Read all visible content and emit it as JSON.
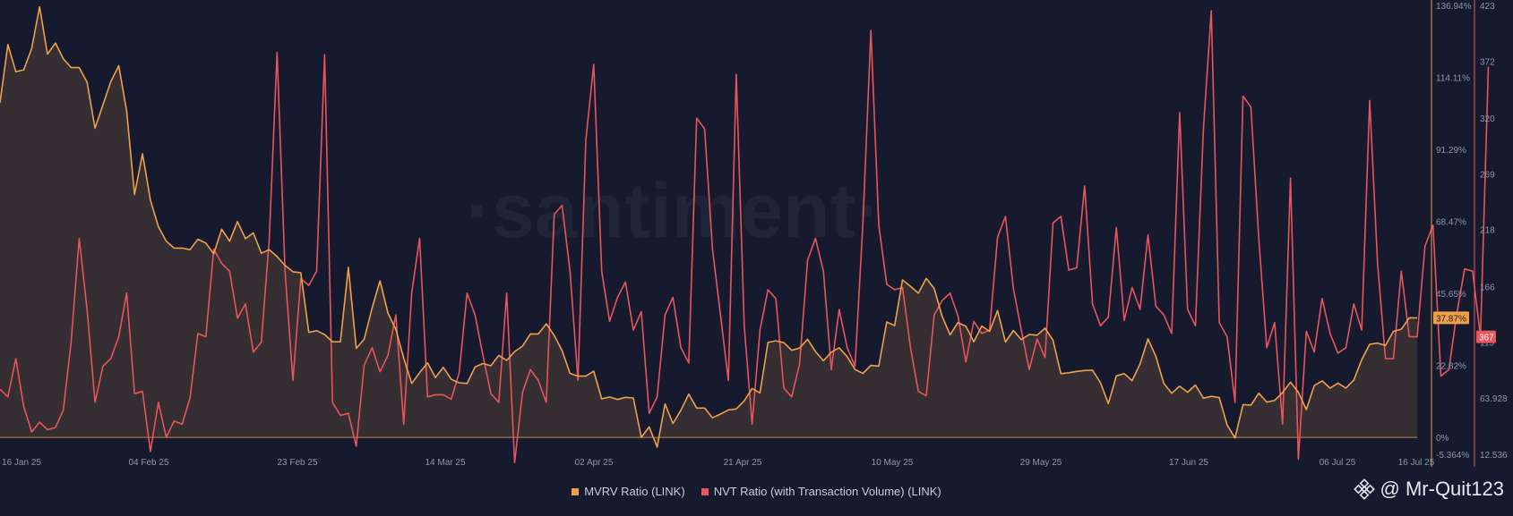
{
  "watermark": "santiment",
  "colors": {
    "background": "#161a2e",
    "mvrv": "#f0a04b",
    "nvt": "#e8555a",
    "mvrv_fill": "#3b3232"
  },
  "axes": {
    "x_ticks": [
      "16 Jan 25",
      "04 Feb 25",
      "23 Feb 25",
      "14 Mar 25",
      "02 Apr 25",
      "21 Apr 25",
      "10 May 25",
      "29 May 25",
      "17 Jun 25",
      "06 Jul 25",
      "16 Jul 25"
    ],
    "mvrv_ticks": [
      "136.94%",
      "114.11%",
      "91.29%",
      "68.47%",
      "45.65%",
      "22.82%",
      "0%",
      "-5.364%"
    ],
    "nvt_ticks": [
      "423",
      "372",
      "320",
      "269",
      "218",
      "166",
      "115",
      "63.928",
      "12.536"
    ],
    "mvrv_last_label": "37.87%",
    "nvt_last_label": "367"
  },
  "legend": {
    "mvrv": "MVRV Ratio (LINK)",
    "nvt": "NVT Ratio (with Transaction Volume) (LINK)"
  },
  "user_tag": "@ Mr-Quit123",
  "chart_data": {
    "type": "line",
    "x_start": "16 Jan 25",
    "x_end": "16 Jul 25",
    "grid": false,
    "legend_position": "bottom",
    "series": [
      {
        "name": "MVRV Ratio (LINK)",
        "axis": "left",
        "fill": true,
        "values": [
          106.1,
          124.5,
          115.9,
          116.5,
          123.3,
          136.5,
          121.5,
          125.0,
          120.0,
          117.2,
          117.2,
          112.6,
          98.0,
          105.4,
          112.8,
          117.8,
          103.4,
          77.0,
          89.9,
          75.2,
          66.8,
          62.2,
          60.0,
          60.0,
          59.5,
          62.8,
          61.6,
          58.2,
          66.0,
          62.2,
          68.4,
          63.0,
          64.8,
          58.4,
          59.5,
          57.3,
          54.5,
          52.5,
          52.2,
          33.3,
          33.8,
          32.6,
          30.3,
          30.3,
          53.9,
          28.2,
          31.1,
          41.0,
          49.6,
          39.4,
          34.2,
          25.1,
          17.1,
          20.5,
          23.6,
          19.0,
          22.2,
          18.4,
          17.3,
          17.1,
          22.3,
          23.4,
          22.7,
          26.0,
          24.4,
          27.2,
          28.9,
          32.8,
          32.8,
          36.0,
          32.3,
          27.5,
          20.3,
          19.4,
          19.4,
          21.0,
          12.2,
          12.8,
          12.0,
          12.7,
          12.5,
          0.0,
          3.3,
          -3.1,
          10.6,
          4.4,
          8.6,
          13.7,
          9.3,
          9.3,
          6.2,
          7.4,
          8.7,
          9.0,
          11.6,
          15.5,
          14.1,
          30.1,
          30.6,
          30.0,
          27.6,
          28.3,
          31.1,
          27.2,
          24.3,
          27.0,
          28.4,
          25.6,
          21.5,
          20.3,
          22.8,
          22.6,
          36.6,
          35.4,
          49.9,
          47.9,
          45.7,
          50.4,
          47.2,
          38.4,
          32.5,
          36.4,
          35.2,
          30.3,
          35.3,
          33.6,
          40.2,
          30.2,
          33.9,
          31.0,
          32.6,
          32.4,
          34.6,
          30.8,
          20.2,
          20.5,
          20.9,
          21.2,
          21.3,
          17.3,
          10.7,
          19.5,
          20.2,
          18.0,
          23.3,
          31.2,
          25.7,
          17.1,
          14.0,
          16.2,
          14.3,
          16.6,
          12.4,
          13.0,
          12.6,
          3.9,
          -0.2,
          10.4,
          10.2,
          14.0,
          11.2,
          11.7,
          14.2,
          17.5,
          14.3,
          8.8,
          16.4,
          17.9,
          15.6,
          17.2,
          15.6,
          18.2,
          24.6,
          29.5,
          29.9,
          29.1,
          33.6,
          34.3,
          37.9,
          37.9
        ],
        "color": "#f0a04b"
      },
      {
        "name": "NVT Ratio (with Transaction Volume) (LINK)",
        "axis": "right",
        "values": [
          72.0,
          65.0,
          100.0,
          56.0,
          33.0,
          42.0,
          35.0,
          37.0,
          53.0,
          116.0,
          210.0,
          145.0,
          60.0,
          93.0,
          100.0,
          120.0,
          160.0,
          68.0,
          70.0,
          15.0,
          60.0,
          28.0,
          43.0,
          40.0,
          64.0,
          123.0,
          120.0,
          200.0,
          187.0,
          180.0,
          137.0,
          150.0,
          106.0,
          115.0,
          208.0,
          380.0,
          180.0,
          80.0,
          173.0,
          167.0,
          180.0,
          378.0,
          60.0,
          48.0,
          50.0,
          20.0,
          94.0,
          110.0,
          88.0,
          103.0,
          140.0,
          40.0,
          160.0,
          210.0,
          65.0,
          67.0,
          67.0,
          63.0,
          87.0,
          160.0,
          140.0,
          103.0,
          68.0,
          60.0,
          160.0,
          5.0,
          69.0,
          90.0,
          80.0,
          60.0,
          232.0,
          240.0,
          180.0,
          80.0,
          300.0,
          369.0,
          180.0,
          134.0,
          156.0,
          170.0,
          126.0,
          143.0,
          50.0,
          65.0,
          140.0,
          156.0,
          110.0,
          96.0,
          320.0,
          310.0,
          200.0,
          140.0,
          80.0,
          360.0,
          130.0,
          40.0,
          126.0,
          163.0,
          155.0,
          73.0,
          65.0,
          95.0,
          190.0,
          210.0,
          180.0,
          90.0,
          145.0,
          110.0,
          93.0,
          224.0,
          400.0,
          222.0,
          168.0,
          163.0,
          165.0,
          110.0,
          70.0,
          66.0,
          140.0,
          153.0,
          160.0,
          139.0,
          97.0,
          134.0,
          123.0,
          126.0,
          211.0,
          230.0,
          164.0,
          126.0,
          90.0,
          118.0,
          101.0,
          224.0,
          230.0,
          181.0,
          183.0,
          258.0,
          150.0,
          130.0,
          138.0,
          220.0,
          135.0,
          165.0,
          145.0,
          213.0,
          148.0,
          140.0,
          123.0,
          325.0,
          145.0,
          130.0,
          310.0,
          418.0,
          133.0,
          120.0,
          60.0,
          340.0,
          330.0,
          210.0,
          110.0,
          133.0,
          40.0,
          265.0,
          8.0,
          125.0,
          106.0,
          155.0,
          123.0,
          105.0,
          110.0,
          150.0,
          126.0,
          336.0,
          187.0,
          100.0,
          100.0,
          180.0,
          120.0,
          120.0,
          203.0,
          222.0,
          84.0,
          90.0,
          141.0,
          182.0,
          180.0,
          120.0,
          367.0
        ],
        "color": "#e8555a"
      }
    ],
    "y_left_range": [
      -5.364,
      136.94
    ],
    "y_right_range": [
      12.536,
      423
    ]
  }
}
